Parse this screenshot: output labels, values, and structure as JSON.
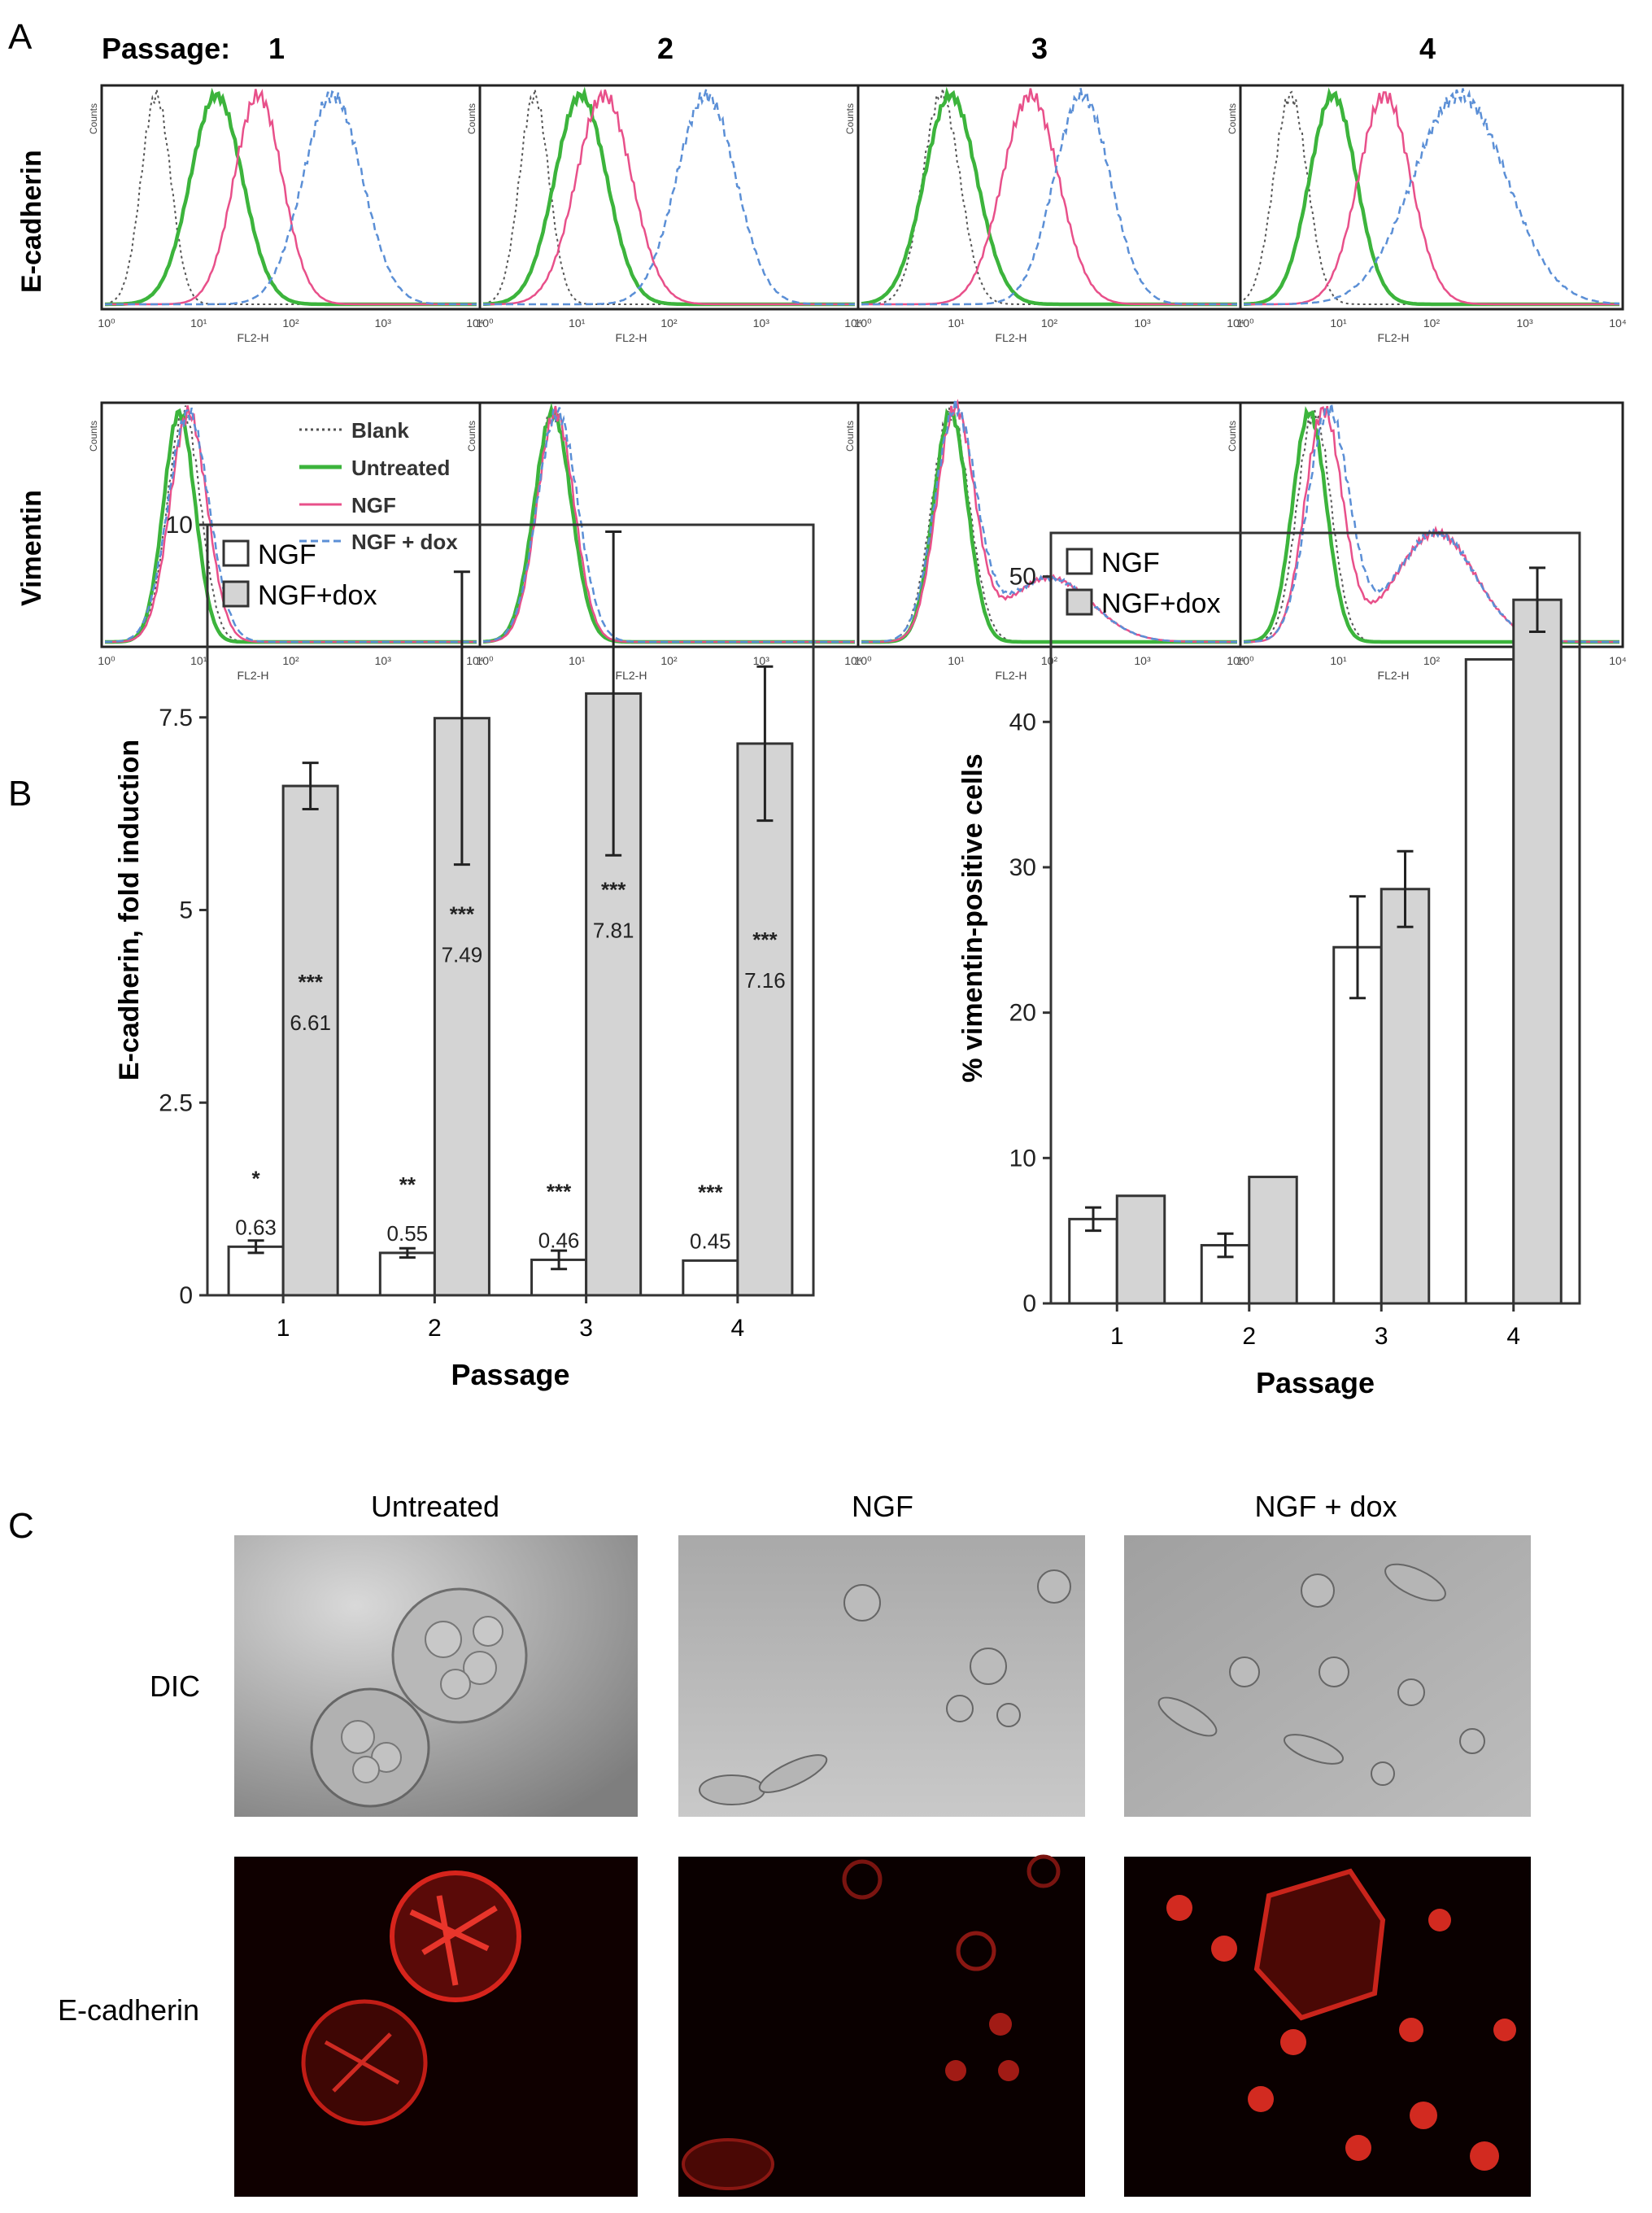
{
  "figure": {
    "panel_labels": [
      "A",
      "B",
      "C"
    ]
  },
  "panel_a": {
    "passage_prefix": "Passage:",
    "passages": [
      "1",
      "2",
      "3",
      "4"
    ],
    "rows": [
      "E-cadherin",
      "Vimentin"
    ],
    "x_axis_label": "FL2-H",
    "y_axis_label": "Counts",
    "x_ticks": [
      "10⁰",
      "10¹",
      "10²",
      "10³",
      "10⁴"
    ],
    "legend": [
      {
        "name": "Blank",
        "color": "#555555",
        "style": "dotted"
      },
      {
        "name": "Untreated",
        "color": "#3cb43c",
        "style": "solid"
      },
      {
        "name": "NGF",
        "color": "#e8508a",
        "style": "solid"
      },
      {
        "name": "NGF + dox",
        "color": "#5b8fd6",
        "style": "dashed"
      }
    ]
  },
  "chart_data": [
    {
      "type": "bar",
      "xlabel": "Passage",
      "ylabel": "E-cadherin, fold induction",
      "categories": [
        "1",
        "2",
        "3",
        "4"
      ],
      "ylim": [
        0,
        10
      ],
      "yticks": [
        "0",
        "2.5",
        "5",
        "7.5",
        "10"
      ],
      "legend_position": "top-left",
      "series": [
        {
          "name": "NGF",
          "color": "#ffffff",
          "values": [
            0.63,
            0.55,
            0.46,
            0.45
          ],
          "errors": [
            0.08,
            0.06,
            0.12,
            0.0
          ],
          "value_labels": [
            "0.63",
            "0.55",
            "0.46",
            "0.45"
          ],
          "significance": [
            "*",
            "**",
            "***",
            "***"
          ]
        },
        {
          "name": "NGF+dox",
          "color": "#d4d4d4",
          "values": [
            6.61,
            7.49,
            7.81,
            7.16
          ],
          "errors": [
            0.3,
            1.9,
            2.1,
            1.0
          ],
          "value_labels": [
            "6.61",
            "7.49",
            "7.81",
            "7.16"
          ],
          "significance": [
            "***",
            "***",
            "***",
            "***"
          ]
        }
      ]
    },
    {
      "type": "bar",
      "xlabel": "Passage",
      "ylabel": "% vimentin-positive cells",
      "categories": [
        "1",
        "2",
        "3",
        "4"
      ],
      "ylim": [
        0,
        53
      ],
      "yticks": [
        "0",
        "10",
        "20",
        "30",
        "40",
        "50"
      ],
      "legend_position": "top-left",
      "series": [
        {
          "name": "NGF",
          "color": "#ffffff",
          "values": [
            5.8,
            4.0,
            24.5,
            44.3
          ],
          "errors": [
            0.8,
            0.8,
            3.5,
            0.0
          ]
        },
        {
          "name": "NGF+dox",
          "color": "#d4d4d4",
          "values": [
            7.4,
            8.7,
            28.5,
            48.4
          ],
          "errors": [
            0.0,
            0.0,
            2.6,
            2.2
          ]
        }
      ]
    }
  ],
  "panel_c": {
    "columns": [
      "Untreated",
      "NGF",
      "NGF + dox"
    ],
    "rows": [
      "DIC",
      "E-cadherin"
    ]
  }
}
